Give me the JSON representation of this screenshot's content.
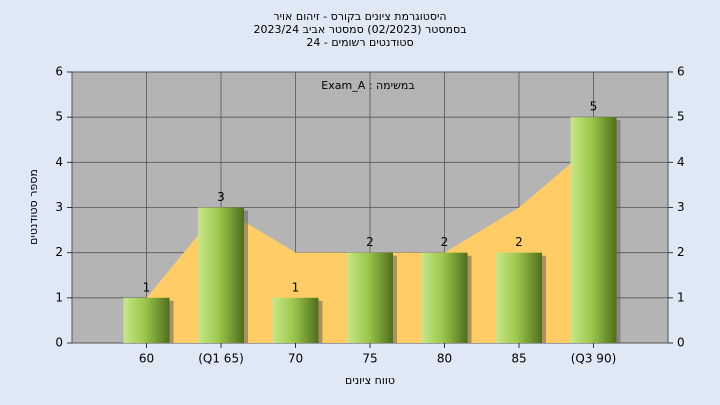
{
  "chart_data": {
    "type": "bar",
    "title": "היסטוגרמת ציונים בקורס - זיהום אויר",
    "subtitle": [
      "בסמסטר  (02/2023)  סמסטר אביב 2023/24",
      "סטודנטים רשומים - 24"
    ],
    "annotation": "במשימה : Exam_A",
    "x_label": "טווח ציונים",
    "y_label": "מספר סטודנטים",
    "categories": [
      "60",
      "(Q1 65)",
      "70",
      "75",
      "80",
      "85",
      "(Q3 90)"
    ],
    "values": [
      1,
      3,
      1,
      2,
      2,
      2,
      5
    ],
    "color": "#8fbf3f",
    "area": {
      "values": [
        1,
        3,
        2,
        2,
        2,
        3,
        4.4
      ],
      "color": "#ffcc66"
    },
    "ylim": [
      0,
      6
    ],
    "yticks": [
      0,
      1,
      2,
      3,
      4,
      5,
      6
    ],
    "y2lim": [
      0,
      6
    ],
    "y2ticks": [
      0,
      1,
      2,
      3,
      4,
      5,
      6
    ],
    "grid": true
  }
}
